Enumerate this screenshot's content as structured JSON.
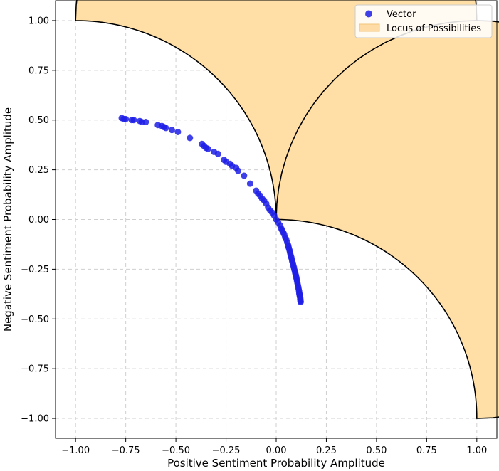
{
  "chart_data": {
    "type": "scatter",
    "title": "",
    "xlabel": "Positive Sentiment Probability Amplitude",
    "ylabel": "Negative Sentiment Probability Amplitude",
    "xlim": [
      -1.1,
      1.1
    ],
    "ylim": [
      -1.1,
      1.1
    ],
    "grid": true,
    "legend_position": "top-right",
    "xticks": [
      -1.0,
      -0.75,
      -0.5,
      -0.25,
      0.0,
      0.25,
      0.5,
      0.75,
      1.0
    ],
    "yticks": [
      -1.0,
      -0.75,
      -0.5,
      -0.25,
      0.0,
      0.25,
      0.5,
      0.75,
      1.0
    ],
    "xtick_labels": [
      "−1.00",
      "−0.75",
      "−0.50",
      "−0.25",
      "0.00",
      "0.25",
      "0.50",
      "0.75",
      "1.00"
    ],
    "ytick_labels": [
      "−1.00",
      "−0.75",
      "−0.50",
      "−0.25",
      "0.00",
      "0.25",
      "0.50",
      "0.75",
      "1.00"
    ],
    "legend": [
      {
        "label": "Vector",
        "kind": "marker",
        "color": "#1f1fe6"
      },
      {
        "label": "Locus of Possibilities",
        "kind": "patch",
        "color": "#ffd18c"
      }
    ],
    "locus": {
      "name": "Locus of Possibilities",
      "fill": "#ffdfa6",
      "edge": "#000000",
      "description_regions": [
        {
          "from": [
            -1.0,
            1.0
          ],
          "to": [
            0.0,
            0.0
          ]
        },
        {
          "from": [
            0.0,
            0.0
          ],
          "to": [
            1.0,
            -1.0
          ]
        }
      ]
    },
    "series": [
      {
        "name": "Vector",
        "color": "#1f1fe6",
        "x": [
          -0.77,
          -0.76,
          -0.75,
          -0.72,
          -0.71,
          -0.68,
          -0.67,
          -0.65,
          -0.59,
          -0.57,
          -0.56,
          -0.55,
          -0.52,
          -0.49,
          -0.43,
          -0.37,
          -0.36,
          -0.35,
          -0.34,
          -0.31,
          -0.29,
          -0.26,
          -0.25,
          -0.23,
          -0.22,
          -0.2,
          -0.19,
          -0.16,
          -0.13,
          -0.1,
          -0.09,
          -0.08,
          -0.07,
          -0.06,
          -0.05,
          -0.04,
          -0.03,
          -0.02,
          -0.01,
          0.0,
          0.01,
          0.02,
          0.025,
          0.03,
          0.035,
          0.04,
          0.045,
          0.05,
          0.055,
          0.06,
          0.062,
          0.065,
          0.068,
          0.07,
          0.072,
          0.075,
          0.078,
          0.08,
          0.083,
          0.085,
          0.088,
          0.09,
          0.093,
          0.095,
          0.098,
          0.1,
          0.102,
          0.104,
          0.106,
          0.108,
          0.11,
          0.112,
          0.114,
          0.115,
          0.116,
          0.117,
          0.118,
          0.119,
          0.12,
          0.12,
          0.121,
          0.121,
          0.122
        ],
        "y": [
          0.51,
          0.505,
          0.505,
          0.5,
          0.5,
          0.495,
          0.49,
          0.49,
          0.475,
          0.47,
          0.465,
          0.46,
          0.45,
          0.44,
          0.41,
          0.38,
          0.37,
          0.36,
          0.355,
          0.34,
          0.33,
          0.3,
          0.29,
          0.28,
          0.27,
          0.26,
          0.245,
          0.22,
          0.18,
          0.145,
          0.13,
          0.12,
          0.105,
          0.095,
          0.08,
          0.06,
          0.045,
          0.035,
          0.02,
          0.0,
          -0.015,
          -0.03,
          -0.045,
          -0.055,
          -0.065,
          -0.075,
          -0.09,
          -0.1,
          -0.115,
          -0.13,
          -0.14,
          -0.15,
          -0.16,
          -0.17,
          -0.18,
          -0.19,
          -0.2,
          -0.21,
          -0.22,
          -0.23,
          -0.24,
          -0.25,
          -0.26,
          -0.27,
          -0.28,
          -0.29,
          -0.3,
          -0.31,
          -0.32,
          -0.33,
          -0.34,
          -0.35,
          -0.36,
          -0.37,
          -0.375,
          -0.38,
          -0.385,
          -0.39,
          -0.395,
          -0.4,
          -0.405,
          -0.41,
          -0.415
        ]
      }
    ]
  }
}
